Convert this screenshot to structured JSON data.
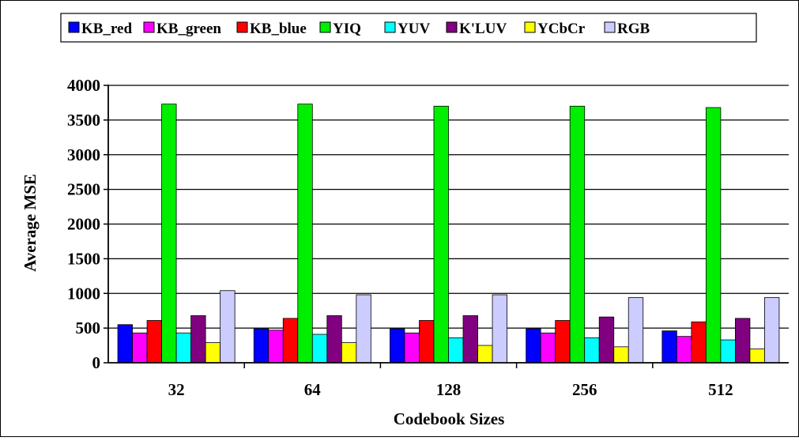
{
  "chart_data": {
    "type": "bar",
    "title": "",
    "xlabel": "Codebook Sizes",
    "ylabel": "Average MSE",
    "ylim": [
      0,
      4000
    ],
    "yticks": [
      0,
      500,
      1000,
      1500,
      2000,
      2500,
      3000,
      3500,
      4000
    ],
    "grid": true,
    "legend_position": "top",
    "categories": [
      "32",
      "64",
      "128",
      "256",
      "512"
    ],
    "series": [
      {
        "name": "KB_red",
        "color": "#0000ff",
        "values": [
          550,
          490,
          490,
          490,
          460
        ]
      },
      {
        "name": "KB_green",
        "color": "#ff00ff",
        "values": [
          430,
          470,
          430,
          430,
          380
        ]
      },
      {
        "name": "KB_blue",
        "color": "#ff0000",
        "values": [
          610,
          640,
          610,
          610,
          590
        ]
      },
      {
        "name": "YIQ",
        "color": "#00ee00",
        "values": [
          3730,
          3730,
          3700,
          3700,
          3680
        ]
      },
      {
        "name": "YUV",
        "color": "#00ffff",
        "values": [
          430,
          410,
          360,
          360,
          330
        ]
      },
      {
        "name": "K'LUV",
        "color": "#800080",
        "values": [
          680,
          680,
          680,
          660,
          640
        ]
      },
      {
        "name": "YCbCr",
        "color": "#ffff00",
        "values": [
          290,
          290,
          250,
          230,
          200
        ]
      },
      {
        "name": "RGB",
        "color": "#ccccff",
        "values": [
          1040,
          980,
          980,
          940,
          940
        ]
      }
    ]
  }
}
